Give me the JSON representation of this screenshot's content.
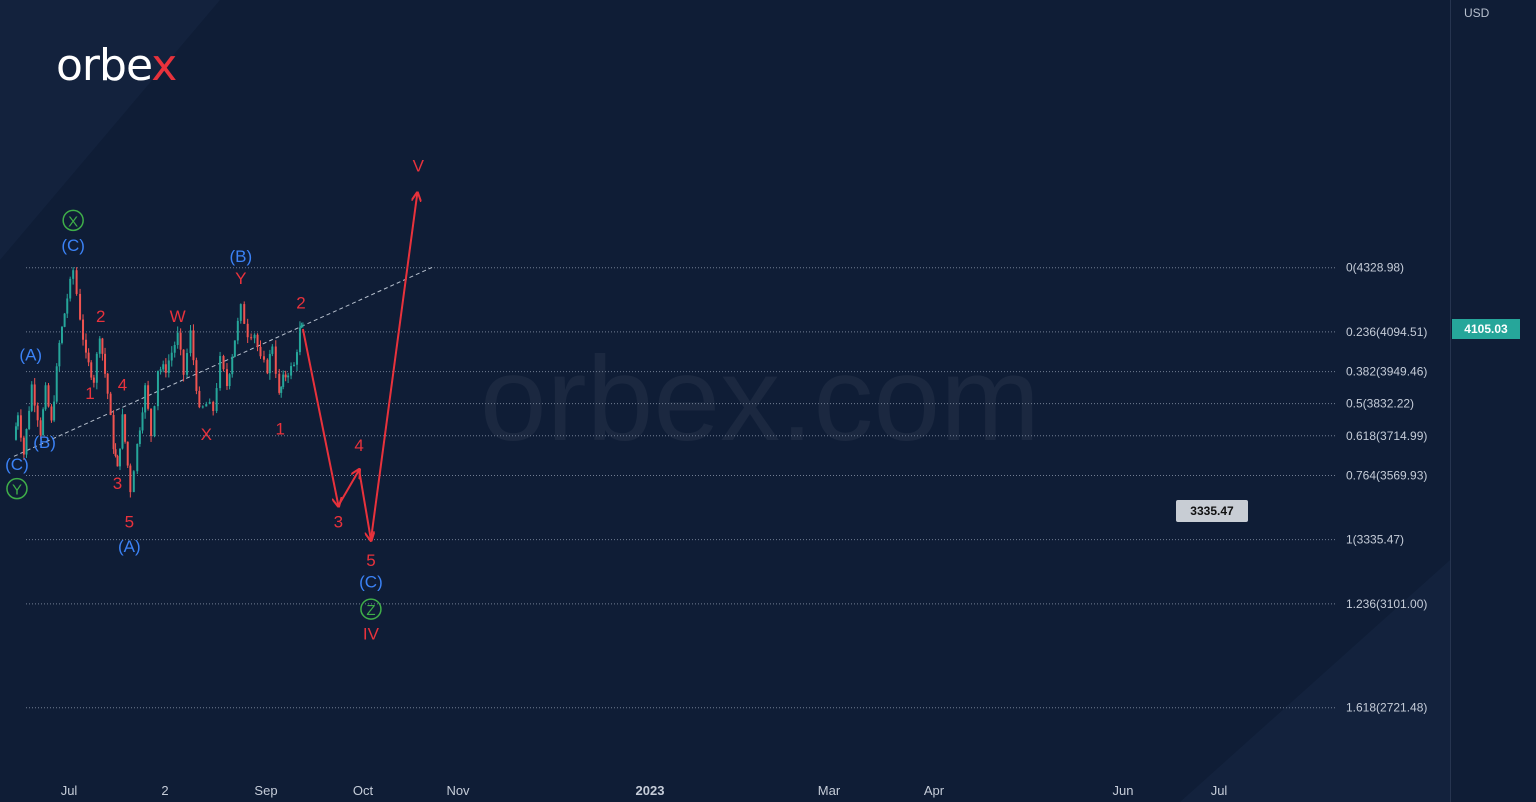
{
  "brand": {
    "logo_text_main": "orbe",
    "logo_text_accent": "x",
    "watermark": "orbex.com"
  },
  "axis": {
    "unit": "USD"
  },
  "colors": {
    "background": "#0f1d36",
    "red": "#e8323c",
    "blue": "#3b82f6",
    "green": "#3fae49",
    "candle_up": "#26a69a",
    "candle_down": "#ef5350",
    "grid_text": "#c5ccd8"
  },
  "chart_data": {
    "type": "candlestick",
    "instrument_price": "4105.03",
    "y_unit": "USD",
    "ylim": [
      2500,
      5200
    ],
    "y_ticks": [
      "2600.00",
      "2800.00",
      "3000.00",
      "3200.00",
      "3400.00",
      "3600.00",
      "3800.00",
      "4000.00",
      "4200.00",
      "4400.00",
      "4600.00",
      "4800.00",
      "5000.00",
      "5200.00"
    ],
    "x_ticks": [
      "Jul",
      "2",
      "Sep",
      "Oct",
      "Nov",
      "2023",
      "Mar",
      "Apr",
      "Jun",
      "Jul"
    ],
    "fib_levels": [
      {
        "label": "0(4328.98)",
        "value": 4328.98
      },
      {
        "label": "0.236(4094.51)",
        "value": 4094.51
      },
      {
        "label": "0.382(3949.46)",
        "value": 3949.46
      },
      {
        "label": "0.5(3832.22)",
        "value": 3832.22
      },
      {
        "label": "0.618(3714.99)",
        "value": 3714.99
      },
      {
        "label": "0.764(3569.93)",
        "value": 3569.93
      },
      {
        "label": "1(3335.47)",
        "value": 3335.47
      },
      {
        "label": "1.236(3101.00)",
        "value": 3101.0
      },
      {
        "label": "1.618(2721.48)",
        "value": 2721.48
      }
    ],
    "target_callout": "3335.47",
    "price_path": [
      {
        "date": "2022-06-17",
        "price": 3700
      },
      {
        "date": "2022-06-21",
        "price": 3800
      },
      {
        "date": "2022-06-27",
        "price": 3650
      },
      {
        "date": "2022-07-05",
        "price": 3900
      },
      {
        "date": "2022-07-14",
        "price": 3730
      },
      {
        "date": "2022-07-19",
        "price": 3880
      },
      {
        "date": "2022-07-25",
        "price": 3760
      },
      {
        "date": "2022-08-02",
        "price": 4050
      },
      {
        "date": "2022-08-10",
        "price": 4220
      },
      {
        "date": "2022-08-16",
        "price": 4320
      },
      {
        "date": "2022-08-23",
        "price": 4150
      },
      {
        "date": "2022-08-29",
        "price": 4000
      },
      {
        "date": "2022-09-06",
        "price": 3920
      },
      {
        "date": "2022-09-12",
        "price": 4090
      },
      {
        "date": "2022-09-20",
        "price": 3870
      },
      {
        "date": "2022-09-26",
        "price": 3680
      },
      {
        "date": "2022-09-30",
        "price": 3590
      },
      {
        "date": "2022-10-05",
        "price": 3780
      },
      {
        "date": "2022-10-13",
        "price": 3520
      },
      {
        "date": "2022-10-20",
        "price": 3680
      },
      {
        "date": "2022-10-28",
        "price": 3890
      },
      {
        "date": "2022-11-03",
        "price": 3720
      },
      {
        "date": "2022-11-10",
        "price": 3960
      },
      {
        "date": "2022-11-18",
        "price": 3960
      },
      {
        "date": "2022-11-30",
        "price": 4080
      },
      {
        "date": "2022-12-06",
        "price": 3940
      },
      {
        "date": "2022-12-13",
        "price": 4090
      },
      {
        "date": "2022-12-22",
        "price": 3800
      },
      {
        "date": "2022-12-29",
        "price": 3830
      },
      {
        "date": "2023-01-05",
        "price": 3810
      },
      {
        "date": "2023-01-12",
        "price": 3990
      },
      {
        "date": "2023-01-19",
        "price": 3900
      },
      {
        "date": "2023-01-27",
        "price": 4070
      },
      {
        "date": "2023-02-02",
        "price": 4180
      },
      {
        "date": "2023-02-09",
        "price": 4090
      },
      {
        "date": "2023-02-16",
        "price": 4090
      },
      {
        "date": "2023-02-22",
        "price": 3990
      },
      {
        "date": "2023-03-01",
        "price": 3960
      },
      {
        "date": "2023-03-06",
        "price": 4050
      },
      {
        "date": "2023-03-13",
        "price": 3860
      },
      {
        "date": "2023-03-17",
        "price": 3920
      },
      {
        "date": "2023-03-22",
        "price": 3950
      },
      {
        "date": "2023-03-28",
        "price": 3970
      },
      {
        "date": "2023-04-03",
        "price": 4100
      },
      {
        "date": "2023-04-06",
        "price": 4105
      }
    ],
    "forecast_path": [
      {
        "date": "2023-04-06",
        "price": 4105
      },
      {
        "date": "2023-05-12",
        "price": 3460
      },
      {
        "date": "2023-06-02",
        "price": 3590
      },
      {
        "date": "2023-06-14",
        "price": 3335
      },
      {
        "date": "2023-07-31",
        "price": 4600
      }
    ],
    "trendline": [
      {
        "date": "2022-06-17",
        "price": 3640
      },
      {
        "date": "2023-08-15",
        "price": 4330
      }
    ],
    "wave_labels": [
      {
        "text": "X",
        "color": "green",
        "circled": true,
        "date": "2022-08-16",
        "price": 4480
      },
      {
        "text": "(C)",
        "color": "blue",
        "date": "2022-08-16",
        "price": 4390
      },
      {
        "text": "(A)",
        "color": "blue",
        "date": "2022-07-04",
        "price": 3990
      },
      {
        "text": "(B)",
        "color": "blue",
        "date": "2022-07-18",
        "price": 3670
      },
      {
        "text": "(C)",
        "color": "blue",
        "date": "2022-06-20",
        "price": 3590
      },
      {
        "text": "Y",
        "color": "green",
        "circled": true,
        "date": "2022-06-20",
        "price": 3500
      },
      {
        "text": "2",
        "color": "red",
        "date": "2022-09-13",
        "price": 4130
      },
      {
        "text": "1",
        "color": "red",
        "date": "2022-09-02",
        "price": 3850
      },
      {
        "text": "4",
        "color": "red",
        "date": "2022-10-05",
        "price": 3880
      },
      {
        "text": "3",
        "color": "red",
        "date": "2022-09-30",
        "price": 3520
      },
      {
        "text": "5",
        "color": "red",
        "date": "2022-10-12",
        "price": 3380
      },
      {
        "text": "(A)",
        "color": "blue",
        "date": "2022-10-12",
        "price": 3290
      },
      {
        "text": "W",
        "color": "red",
        "date": "2022-11-30",
        "price": 4130
      },
      {
        "text": "X",
        "color": "red",
        "date": "2022-12-29",
        "price": 3700
      },
      {
        "text": "(B)",
        "color": "blue",
        "date": "2023-02-02",
        "price": 4350
      },
      {
        "text": "Y",
        "color": "red",
        "date": "2023-02-02",
        "price": 4270
      },
      {
        "text": "1",
        "color": "red",
        "date": "2023-03-14",
        "price": 3720
      },
      {
        "text": "2",
        "color": "red",
        "date": "2023-04-04",
        "price": 4180
      },
      {
        "text": "3",
        "color": "red",
        "date": "2023-05-12",
        "price": 3380
      },
      {
        "text": "4",
        "color": "red",
        "date": "2023-06-02",
        "price": 3660
      },
      {
        "text": "5",
        "color": "red",
        "date": "2023-06-14",
        "price": 3240
      },
      {
        "text": "(C)",
        "color": "blue",
        "date": "2023-06-14",
        "price": 3160
      },
      {
        "text": "Z",
        "color": "green",
        "circled": true,
        "date": "2023-06-14",
        "price": 3060
      },
      {
        "text": "IV",
        "color": "red",
        "date": "2023-06-14",
        "price": 2970
      },
      {
        "text": "V",
        "color": "red",
        "date": "2023-08-01",
        "price": 4680
      }
    ]
  }
}
